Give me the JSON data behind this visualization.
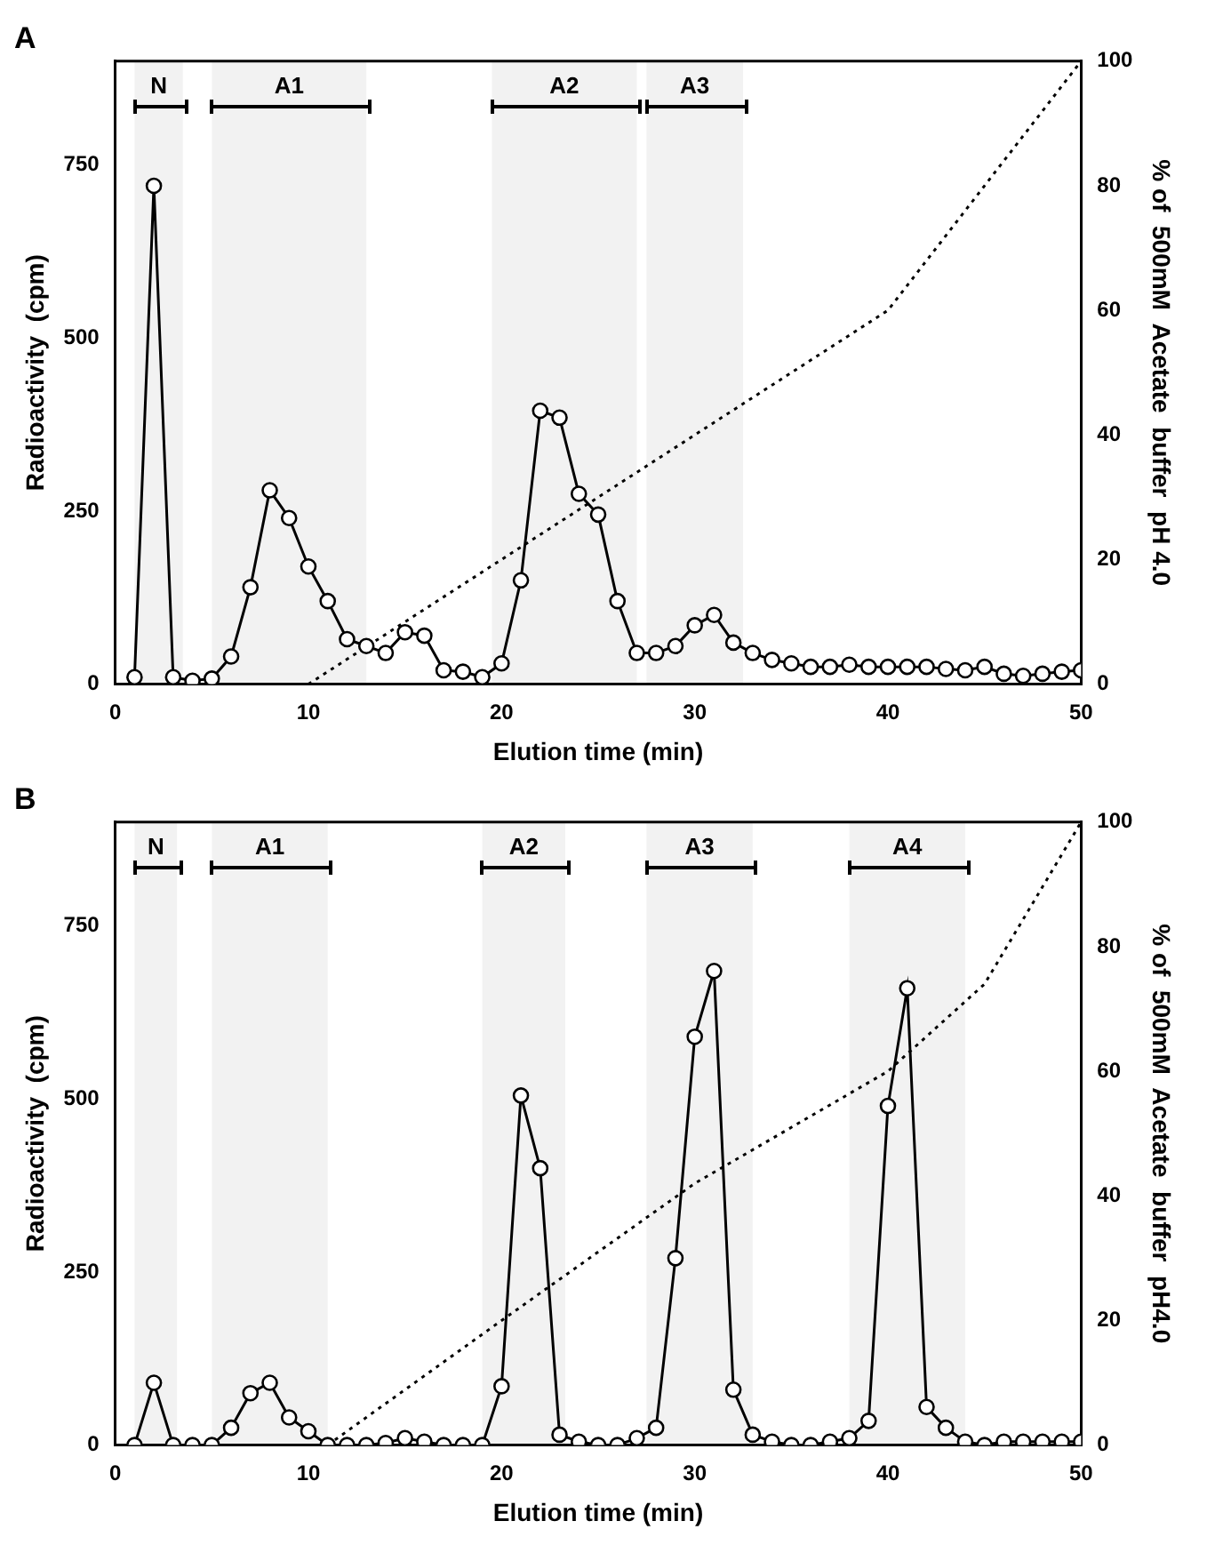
{
  "chart_data": [
    {
      "type": "line",
      "title": "A",
      "xlabel": "Elution time (min)",
      "ylabel": "Radioactivity  (cpm)",
      "y2label": "% of  500mM  Acetate  buffer  pH 4.0",
      "x": [
        1,
        2,
        3,
        4,
        5,
        6,
        7,
        8,
        9,
        10,
        11,
        12,
        13,
        14,
        15,
        16,
        17,
        18,
        19,
        20,
        21,
        22,
        23,
        24,
        25,
        26,
        27,
        28,
        29,
        30,
        31,
        32,
        33,
        34,
        35,
        36,
        37,
        38,
        39,
        40,
        41,
        42,
        43,
        44,
        45,
        46,
        47,
        48,
        49,
        50
      ],
      "series": [
        {
          "color": "#000000",
          "values": [
            10,
            720,
            10,
            5,
            8,
            40,
            140,
            280,
            240,
            170,
            120,
            65,
            55,
            45,
            75,
            70,
            20,
            18,
            10,
            30,
            150,
            395,
            385,
            275,
            245,
            120,
            45,
            45,
            55,
            85,
            100,
            60,
            45,
            35,
            30,
            25,
            25,
            28,
            25,
            25,
            25,
            25,
            22,
            20,
            25,
            15,
            12,
            15,
            18,
            20
          ]
        },
        {
          "color": "#000000",
          "axis": "y2",
          "marker": "none",
          "line_style": "dotted",
          "x": [
            10,
            40,
            50
          ],
          "values": [
            0,
            60,
            100
          ]
        }
      ],
      "xlim": [
        0,
        50
      ],
      "xticks": [
        0,
        10,
        20,
        30,
        40,
        50
      ],
      "ylim": [
        0,
        900
      ],
      "yticks": [
        0,
        250,
        500,
        750
      ],
      "y2lim": [
        0,
        100
      ],
      "y2ticks": [
        0,
        20,
        40,
        60,
        80,
        100
      ],
      "marker": "circle",
      "bands": [
        {
          "axis": "x",
          "from": 1,
          "to": 3.5,
          "label": "N"
        },
        {
          "axis": "x",
          "from": 5,
          "to": 13,
          "label": "A1"
        },
        {
          "axis": "x",
          "from": 19.5,
          "to": 27,
          "label": "A2"
        },
        {
          "axis": "x",
          "from": 27.5,
          "to": 32.5,
          "label": "A3"
        }
      ]
    },
    {
      "type": "line",
      "title": "B",
      "xlabel": "Elution time (min)",
      "ylabel": "Radioactivity  (cpm)",
      "y2label": "% of  500mM  Acetate  buffer  pH4.0",
      "x": [
        1,
        2,
        3,
        4,
        5,
        6,
        7,
        8,
        9,
        10,
        11,
        12,
        13,
        14,
        15,
        16,
        17,
        18,
        19,
        20,
        21,
        22,
        23,
        24,
        25,
        26,
        27,
        28,
        29,
        30,
        31,
        32,
        33,
        34,
        35,
        36,
        37,
        38,
        39,
        40,
        41,
        42,
        43,
        44,
        45,
        46,
        47,
        48,
        49,
        50
      ],
      "series": [
        {
          "color": "#000000",
          "values": [
            0,
            90,
            0,
            0,
            0,
            25,
            75,
            90,
            40,
            20,
            0,
            0,
            0,
            3,
            10,
            5,
            0,
            0,
            0,
            85,
            505,
            400,
            15,
            5,
            0,
            0,
            10,
            25,
            270,
            590,
            685,
            80,
            15,
            5,
            0,
            0,
            5,
            10,
            35,
            490,
            660,
            55,
            25,
            5,
            0,
            5,
            5,
            5,
            5,
            5
          ]
        },
        {
          "color": "#000000",
          "axis": "y2",
          "marker": "none",
          "line_style": "dotted",
          "x": [
            11,
            20,
            30,
            40,
            45,
            50
          ],
          "values": [
            0,
            20,
            42,
            60,
            74,
            100
          ]
        }
      ],
      "xlim": [
        0,
        50
      ],
      "xticks": [
        0,
        10,
        20,
        30,
        40,
        50
      ],
      "ylim": [
        0,
        900
      ],
      "yticks": [
        0,
        250,
        500,
        750
      ],
      "y2lim": [
        0,
        100
      ],
      "y2ticks": [
        0,
        20,
        40,
        60,
        80,
        100
      ],
      "marker": "circle",
      "bands": [
        {
          "axis": "x",
          "from": 1,
          "to": 3.2,
          "label": "N"
        },
        {
          "axis": "x",
          "from": 5,
          "to": 11,
          "label": "A1"
        },
        {
          "axis": "x",
          "from": 19,
          "to": 23.3,
          "label": "A2"
        },
        {
          "axis": "x",
          "from": 27.5,
          "to": 33,
          "label": "A3"
        },
        {
          "axis": "x",
          "from": 38,
          "to": 44,
          "label": "A4"
        }
      ]
    }
  ]
}
